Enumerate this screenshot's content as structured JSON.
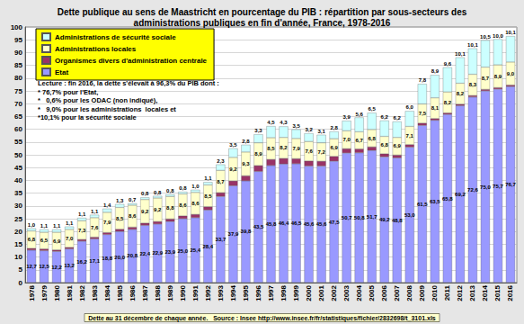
{
  "chart_data": {
    "type": "bar",
    "stacked": true,
    "grid": true,
    "legend": "top-left",
    "title": "Dette publique au sens de Maastricht en pourcentage du PIB : répartition par sous-secteurs des\nadministrations publiques en fin d'année, France, 1978-2016",
    "annotation": [
      "Lecture : fin 2016, la dette s'élevait à 96,3% du PIB dont :",
      "* 76,7% pour l'Etat,",
      "*   0,6% pour les ODAC (non indiqué),",
      "*   9,0% pour les administrations  locales et",
      "*10,1% pour la sécurité sociale"
    ],
    "footer": "Dette au 31 décembre de chaque année.   Source : Insee http://www.insee.fr/fr/statistiques/fichier/2832698/t_3101.xls",
    "categories": [
      "1978",
      "1979",
      "1980",
      "1981",
      "1982",
      "1983",
      "1984",
      "1985",
      "1986",
      "1987",
      "1988",
      "1989",
      "1990",
      "1991",
      "1992",
      "1993",
      "1994",
      "1995",
      "1996",
      "1997",
      "1998",
      "1999",
      "2000",
      "2001",
      "2002",
      "2003",
      "2004",
      "2005",
      "2006",
      "2007",
      "2008",
      "2009",
      "2010",
      "2011",
      "2012",
      "2013",
      "2014",
      "2015",
      "2016"
    ],
    "ylim": [
      0,
      100
    ],
    "yticks": [
      0,
      5,
      10,
      15,
      20,
      25,
      30,
      35,
      40,
      45,
      50,
      55,
      60,
      65,
      70,
      75,
      80,
      85,
      90,
      95,
      100
    ],
    "series": [
      {
        "name": "Etat",
        "color": "#9999ff",
        "data_labels": true,
        "values": [
          12.7,
          12.5,
          12.2,
          13.2,
          16.2,
          17.1,
          18.8,
          20.0,
          20.8,
          22.4,
          22.9,
          23.9,
          25.0,
          25.4,
          28.4,
          33.7,
          37.9,
          39.8,
          43.5,
          45.8,
          46.4,
          46.5,
          45.6,
          45.6,
          47.5,
          50.7,
          50.8,
          51.7,
          49.2,
          48.8,
          53.0,
          61.5,
          63.5,
          65.8,
          69.2,
          72.6,
          75.0,
          75.7,
          76.7
        ],
        "value_labels": [
          "12,7",
          "12,5",
          "12,2",
          "13,2",
          "16,2",
          "17,1",
          "18,8",
          "20,0",
          "20,8",
          "22,4",
          "22,9",
          "23,9",
          "25,0",
          "25,4",
          "28,4",
          "33,7",
          "37,9",
          "39,8",
          "43,5",
          "45,8",
          "46,4",
          "46,5",
          "45,6",
          "45,6",
          "47,5",
          "50,7",
          "50,8",
          "51,7",
          "49,2",
          "48,8",
          "53,0",
          "61,5",
          "63,5",
          "65,8",
          "69,2",
          "72,6",
          "75,0",
          "75,7",
          "76,7"
        ]
      },
      {
        "name": "Organismes divers d'administration centrale",
        "color": "#993366",
        "data_labels": false,
        "values": [
          0.7,
          0.7,
          0.6,
          0.6,
          0.7,
          0.7,
          0.8,
          0.9,
          0.9,
          0.9,
          1.0,
          1.0,
          1.1,
          1.3,
          1.3,
          1.5,
          1.9,
          2.0,
          2.3,
          2.4,
          2.2,
          2.0,
          2.0,
          1.9,
          1.9,
          1.7,
          1.5,
          1.4,
          1.2,
          1.1,
          1.0,
          0.9,
          0.7,
          0.6,
          0.6,
          0.6,
          0.6,
          0.6,
          0.6
        ]
      },
      {
        "name": "Administrations locales",
        "color": "#ffffcc",
        "data_labels": true,
        "values": [
          6.8,
          6.5,
          6.9,
          7.0,
          7.3,
          7.6,
          7.9,
          8.5,
          8.6,
          9.2,
          9.2,
          8.8,
          8.6,
          8.6,
          8.5,
          8.7,
          9.2,
          9.3,
          8.9,
          8.5,
          8.2,
          7.9,
          7.6,
          7.2,
          6.9,
          7.0,
          6.7,
          6.8,
          6.8,
          6.9,
          7.1,
          7.5,
          8.1,
          8.2,
          8.2,
          8.3,
          8.7,
          8.9,
          9.0
        ],
        "value_labels": [
          "6,8",
          "6,5",
          "6,9",
          "7,0",
          "7,3",
          "7,6",
          "7,9",
          "8,5",
          "8,6",
          "9,2",
          "9,2",
          "8,8",
          "8,6",
          "8,6",
          "8,5",
          "8,7",
          "9,2",
          "9,3",
          "8,9",
          "8,5",
          "8,2",
          "7,9",
          "7,6",
          "7,2",
          "6,9",
          "7,0",
          "6,7",
          "6,8",
          "6,8",
          "6,9",
          "7,1",
          "7,5",
          "8,1",
          "8,2",
          "8,2",
          "8,3",
          "8,7",
          "8,9",
          "9,0"
        ]
      },
      {
        "name": "Administrations de sécurité sociale",
        "color": "#ccffff",
        "data_labels": true,
        "values": [
          1.0,
          1.1,
          1.1,
          1.1,
          1.1,
          1.1,
          1.4,
          1.3,
          0.7,
          0.8,
          0.8,
          0.8,
          0.8,
          1.0,
          1.1,
          2.3,
          3.5,
          2.8,
          3.3,
          4.5,
          4.3,
          3.5,
          3.2,
          3.1,
          2.8,
          3.9,
          5.6,
          6.5,
          6.2,
          6.2,
          6.0,
          7.8,
          8.9,
          9.6,
          10.1,
          10.1,
          10.5,
          10.0,
          10.1
        ],
        "value_labels": [
          "1,0",
          "1,1",
          "1,1",
          "1,1",
          "1,1",
          "1,1",
          "1,4",
          "1,3",
          "0,7",
          "0,8",
          "0,8",
          "0,8",
          "0,8",
          "1,0",
          "1,1",
          "2,3",
          "3,5",
          "2,8",
          "3,3",
          "4,5",
          "4,3",
          "3,5",
          "3,2",
          "3,1",
          "2,8",
          "3,9",
          "5,6",
          "6,5",
          "6,2",
          "6,2",
          "6,0",
          "7,8",
          "8,9",
          "9,6",
          "10,1",
          "10,1",
          "10,5",
          "10,0",
          "10,1"
        ]
      }
    ]
  }
}
